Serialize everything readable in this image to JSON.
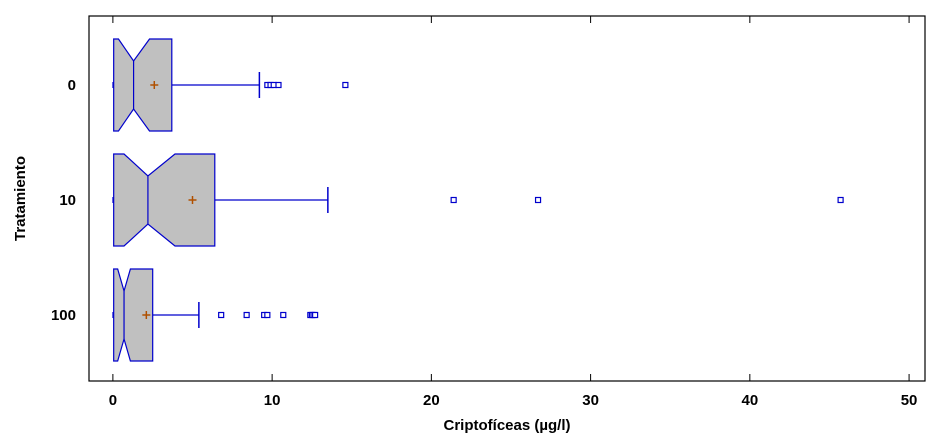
{
  "chart_data": {
    "type": "boxplot",
    "orientation": "horizontal",
    "notched": true,
    "xlabel": "Criptofíceas (µg/l)",
    "ylabel": "Tratamiento",
    "xlim": [
      -1.5,
      51
    ],
    "xticks": [
      0,
      10,
      20,
      30,
      40,
      50
    ],
    "categories": [
      "0",
      "10",
      "100"
    ],
    "colors": {
      "box_fill": "#c0c0c0",
      "box_stroke": "#0000cc",
      "mean_marker": "#b05000",
      "axis": "#000000"
    },
    "groups": [
      {
        "label": "0",
        "min": 0,
        "q1": 0.05,
        "median": 1.3,
        "q3": 3.7,
        "whisker_high": 9.2,
        "notch_low": 0.35,
        "notch_high": 2.3,
        "mean": 2.6,
        "outliers": [
          9.7,
          9.9,
          10.1,
          10.4,
          14.6
        ]
      },
      {
        "label": "10",
        "min": 0,
        "q1": 0.05,
        "median": 2.2,
        "q3": 6.4,
        "whisker_high": 13.5,
        "notch_low": 0.7,
        "notch_high": 3.9,
        "mean": 5.0,
        "outliers": [
          21.4,
          26.7,
          45.7
        ]
      },
      {
        "label": "100",
        "min": 0,
        "q1": 0.05,
        "median": 0.7,
        "q3": 2.5,
        "whisker_high": 5.4,
        "notch_low": 0.3,
        "notch_high": 1.1,
        "mean": 2.1,
        "outliers": [
          6.8,
          8.4,
          9.5,
          9.7,
          10.7,
          12.4,
          12.5,
          12.6,
          12.7
        ]
      }
    ]
  }
}
